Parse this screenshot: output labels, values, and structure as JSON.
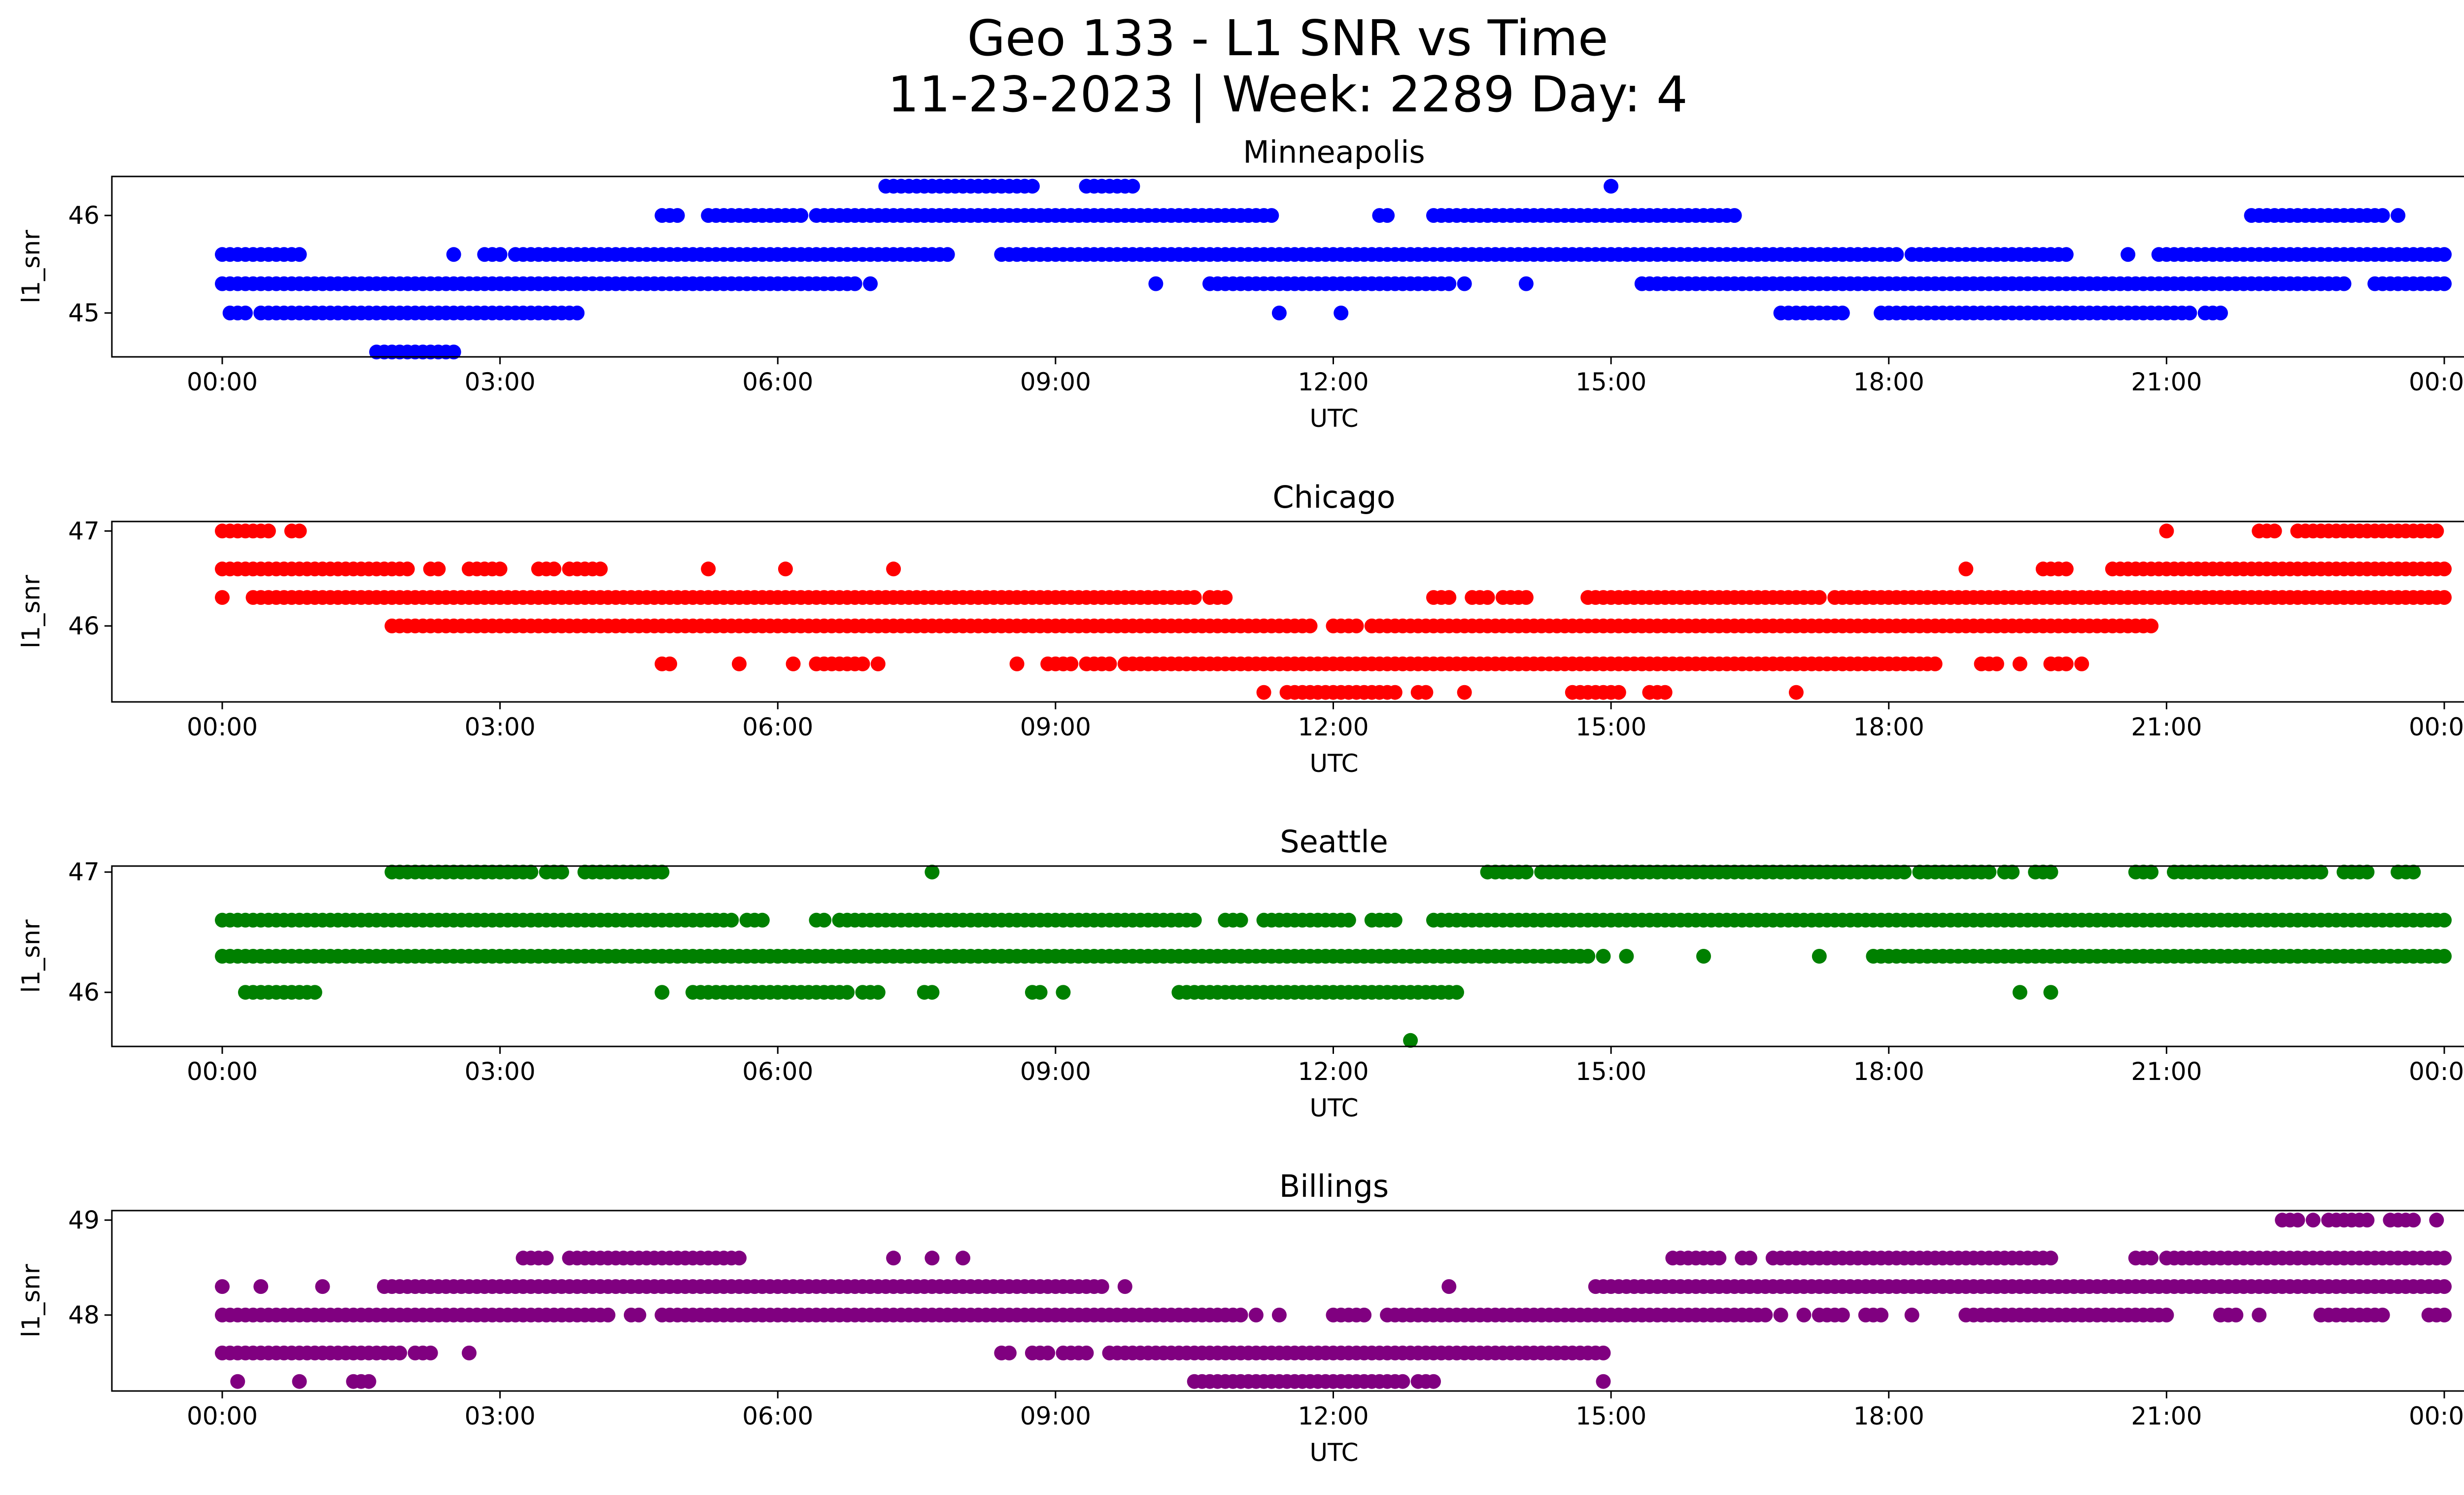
{
  "figure": {
    "title_line1": "Geo 133 - L1 SNR vs Time",
    "title_line2": "11-23-2023 | Week: 2289 Day: 4"
  },
  "chart_data": [
    {
      "type": "scatter",
      "title": "Minneapolis",
      "xlabel": "UTC",
      "ylabel": "l1_snr",
      "color": "#0000ff",
      "xlim": [
        "23:36",
        "00:26 (+1 day)"
      ],
      "ylim": [
        44.55,
        46.4
      ],
      "x_ticks": [
        "00:00",
        "03:00",
        "06:00",
        "09:00",
        "12:00",
        "15:00",
        "18:00",
        "21:00",
        "00:00"
      ],
      "y_ticks": [
        45,
        46
      ],
      "grid": false,
      "runs": [
        {
          "y": 46.3,
          "from": "07:10",
          "to": "08:45"
        },
        {
          "y": 46.3,
          "from": "09:20",
          "to": "09:50"
        },
        {
          "y": 46.3,
          "from": "15:00",
          "to": "15:00"
        },
        {
          "y": 46.0,
          "from": "04:45",
          "to": "04:55"
        },
        {
          "y": 46.0,
          "from": "05:15",
          "to": "06:15"
        },
        {
          "y": 46.0,
          "from": "06:25",
          "to": "11:20"
        },
        {
          "y": 46.0,
          "from": "12:30",
          "to": "12:35"
        },
        {
          "y": 46.0,
          "from": "13:05",
          "to": "16:20"
        },
        {
          "y": 46.0,
          "from": "21:55",
          "to": "23:20"
        },
        {
          "y": 46.0,
          "from": "23:30",
          "to": "23:30"
        },
        {
          "y": 45.6,
          "from": "00:00",
          "to": "00:50"
        },
        {
          "y": 45.6,
          "from": "02:30",
          "to": "02:30"
        },
        {
          "y": 45.6,
          "from": "02:50",
          "to": "03:00"
        },
        {
          "y": 45.6,
          "from": "03:10",
          "to": "07:50"
        },
        {
          "y": 45.6,
          "from": "08:25",
          "to": "18:05"
        },
        {
          "y": 45.6,
          "from": "18:15",
          "to": "19:55"
        },
        {
          "y": 45.6,
          "from": "20:35",
          "to": "20:35"
        },
        {
          "y": 45.6,
          "from": "20:55",
          "to": "24:00"
        },
        {
          "y": 45.3,
          "from": "00:00",
          "to": "05:55"
        },
        {
          "y": 45.3,
          "from": "06:00",
          "to": "06:50"
        },
        {
          "y": 45.3,
          "from": "07:00",
          "to": "07:00"
        },
        {
          "y": 45.3,
          "from": "10:05",
          "to": "10:05"
        },
        {
          "y": 45.3,
          "from": "10:40",
          "to": "13:15"
        },
        {
          "y": 45.3,
          "from": "13:25",
          "to": "13:25"
        },
        {
          "y": 45.3,
          "from": "14:05",
          "to": "14:05"
        },
        {
          "y": 45.3,
          "from": "15:20",
          "to": "22:55"
        },
        {
          "y": 45.3,
          "from": "23:15",
          "to": "24:00"
        },
        {
          "y": 45.0,
          "from": "00:05",
          "to": "00:15"
        },
        {
          "y": 45.0,
          "from": "00:25",
          "to": "03:45"
        },
        {
          "y": 45.0,
          "from": "03:50",
          "to": "03:50"
        },
        {
          "y": 45.0,
          "from": "11:25",
          "to": "11:25"
        },
        {
          "y": 45.0,
          "from": "12:05",
          "to": "12:05"
        },
        {
          "y": 45.0,
          "from": "16:50",
          "to": "17:30"
        },
        {
          "y": 45.0,
          "from": "17:55",
          "to": "21:15"
        },
        {
          "y": 45.0,
          "from": "21:25",
          "to": "21:35"
        },
        {
          "y": 44.6,
          "from": "01:40",
          "to": "02:30"
        }
      ]
    },
    {
      "type": "scatter",
      "title": "Chicago",
      "xlabel": "UTC",
      "ylabel": "l1_snr",
      "color": "#ff0000",
      "xlim": [
        "23:36",
        "00:26 (+1 day)"
      ],
      "ylim": [
        45.2,
        47.1
      ],
      "x_ticks": [
        "00:00",
        "03:00",
        "06:00",
        "09:00",
        "12:00",
        "15:00",
        "18:00",
        "21:00",
        "00:00"
      ],
      "y_ticks": [
        46,
        47
      ],
      "grid": false,
      "runs": [
        {
          "y": 47.0,
          "from": "00:00",
          "to": "00:30"
        },
        {
          "y": 47.0,
          "from": "00:45",
          "to": "00:50"
        },
        {
          "y": 47.0,
          "from": "21:00",
          "to": "21:00"
        },
        {
          "y": 47.0,
          "from": "22:00",
          "to": "22:10"
        },
        {
          "y": 47.0,
          "from": "22:25",
          "to": "23:55"
        },
        {
          "y": 46.6,
          "from": "00:00",
          "to": "02:00"
        },
        {
          "y": 46.6,
          "from": "02:15",
          "to": "02:20"
        },
        {
          "y": 46.6,
          "from": "02:40",
          "to": "02:55"
        },
        {
          "y": 46.6,
          "from": "03:00",
          "to": "03:00"
        },
        {
          "y": 46.6,
          "from": "03:25",
          "to": "03:35"
        },
        {
          "y": 46.6,
          "from": "03:45",
          "to": "04:05"
        },
        {
          "y": 46.6,
          "from": "05:15",
          "to": "05:15"
        },
        {
          "y": 46.6,
          "from": "06:05",
          "to": "06:05"
        },
        {
          "y": 46.6,
          "from": "07:15",
          "to": "07:15"
        },
        {
          "y": 46.6,
          "from": "18:50",
          "to": "18:50"
        },
        {
          "y": 46.6,
          "from": "19:40",
          "to": "19:55"
        },
        {
          "y": 46.6,
          "from": "20:25",
          "to": "24:00"
        },
        {
          "y": 46.3,
          "from": "00:00",
          "to": "00:00"
        },
        {
          "y": 46.3,
          "from": "00:20",
          "to": "10:30"
        },
        {
          "y": 46.3,
          "from": "10:40",
          "to": "10:50"
        },
        {
          "y": 46.3,
          "from": "13:05",
          "to": "13:15"
        },
        {
          "y": 46.3,
          "from": "13:30",
          "to": "13:40"
        },
        {
          "y": 46.3,
          "from": "13:50",
          "to": "14:05"
        },
        {
          "y": 46.3,
          "from": "14:45",
          "to": "17:15"
        },
        {
          "y": 46.3,
          "from": "17:25",
          "to": "24:00"
        },
        {
          "y": 46.0,
          "from": "01:50",
          "to": "11:45"
        },
        {
          "y": 46.0,
          "from": "12:00",
          "to": "12:15"
        },
        {
          "y": 46.0,
          "from": "12:25",
          "to": "20:50"
        },
        {
          "y": 45.6,
          "from": "04:45",
          "to": "04:50"
        },
        {
          "y": 45.6,
          "from": "05:35",
          "to": "05:35"
        },
        {
          "y": 45.6,
          "from": "06:10",
          "to": "06:10"
        },
        {
          "y": 45.6,
          "from": "06:25",
          "to": "06:55"
        },
        {
          "y": 45.6,
          "from": "07:05",
          "to": "07:05"
        },
        {
          "y": 45.6,
          "from": "08:35",
          "to": "08:35"
        },
        {
          "y": 45.6,
          "from": "08:55",
          "to": "09:10"
        },
        {
          "y": 45.6,
          "from": "09:20",
          "to": "09:35"
        },
        {
          "y": 45.6,
          "from": "09:45",
          "to": "18:30"
        },
        {
          "y": 45.6,
          "from": "19:00",
          "to": "19:10"
        },
        {
          "y": 45.6,
          "from": "19:25",
          "to": "19:25"
        },
        {
          "y": 45.6,
          "from": "19:45",
          "to": "19:55"
        },
        {
          "y": 45.6,
          "from": "20:05",
          "to": "20:05"
        },
        {
          "y": 45.3,
          "from": "11:15",
          "to": "11:15"
        },
        {
          "y": 45.3,
          "from": "11:30",
          "to": "12:40"
        },
        {
          "y": 45.3,
          "from": "12:55",
          "to": "13:00"
        },
        {
          "y": 45.3,
          "from": "13:25",
          "to": "13:25"
        },
        {
          "y": 45.3,
          "from": "14:35",
          "to": "15:05"
        },
        {
          "y": 45.3,
          "from": "15:25",
          "to": "15:35"
        },
        {
          "y": 45.3,
          "from": "17:00",
          "to": "17:00"
        }
      ]
    },
    {
      "type": "scatter",
      "title": "Seattle",
      "xlabel": "UTC",
      "ylabel": "l1_snr",
      "color": "#008000",
      "xlim": [
        "23:36",
        "00:26 (+1 day)"
      ],
      "ylim": [
        45.55,
        47.05
      ],
      "x_ticks": [
        "00:00",
        "03:00",
        "06:00",
        "09:00",
        "12:00",
        "15:00",
        "18:00",
        "21:00",
        "00:00"
      ],
      "y_ticks": [
        46,
        47
      ],
      "grid": false,
      "runs": [
        {
          "y": 47.0,
          "from": "01:50",
          "to": "03:20"
        },
        {
          "y": 47.0,
          "from": "03:30",
          "to": "03:40"
        },
        {
          "y": 47.0,
          "from": "03:55",
          "to": "04:45"
        },
        {
          "y": 47.0,
          "from": "07:40",
          "to": "07:40"
        },
        {
          "y": 47.0,
          "from": "13:40",
          "to": "14:05"
        },
        {
          "y": 47.0,
          "from": "14:15",
          "to": "18:10"
        },
        {
          "y": 47.0,
          "from": "18:20",
          "to": "19:05"
        },
        {
          "y": 47.0,
          "from": "19:15",
          "to": "19:20"
        },
        {
          "y": 47.0,
          "from": "19:35",
          "to": "19:45"
        },
        {
          "y": 47.0,
          "from": "20:40",
          "to": "20:50"
        },
        {
          "y": 47.0,
          "from": "21:05",
          "to": "22:40"
        },
        {
          "y": 47.0,
          "from": "22:55",
          "to": "23:10"
        },
        {
          "y": 47.0,
          "from": "23:30",
          "to": "23:40"
        },
        {
          "y": 46.6,
          "from": "00:00",
          "to": "05:30"
        },
        {
          "y": 46.6,
          "from": "05:40",
          "to": "05:50"
        },
        {
          "y": 46.6,
          "from": "06:25",
          "to": "06:30"
        },
        {
          "y": 46.6,
          "from": "06:40",
          "to": "10:30"
        },
        {
          "y": 46.6,
          "from": "10:50",
          "to": "11:00"
        },
        {
          "y": 46.6,
          "from": "11:15",
          "to": "12:10"
        },
        {
          "y": 46.6,
          "from": "12:25",
          "to": "12:40"
        },
        {
          "y": 46.6,
          "from": "13:05",
          "to": "24:00"
        },
        {
          "y": 46.3,
          "from": "00:00",
          "to": "14:45"
        },
        {
          "y": 46.3,
          "from": "14:55",
          "to": "14:55"
        },
        {
          "y": 46.3,
          "from": "15:10",
          "to": "15:10"
        },
        {
          "y": 46.3,
          "from": "16:00",
          "to": "16:00"
        },
        {
          "y": 46.3,
          "from": "17:15",
          "to": "17:15"
        },
        {
          "y": 46.3,
          "from": "17:50",
          "to": "24:00"
        },
        {
          "y": 46.0,
          "from": "00:15",
          "to": "01:00"
        },
        {
          "y": 46.0,
          "from": "04:45",
          "to": "04:45"
        },
        {
          "y": 46.0,
          "from": "05:05",
          "to": "06:45"
        },
        {
          "y": 46.0,
          "from": "06:55",
          "to": "07:05"
        },
        {
          "y": 46.0,
          "from": "07:35",
          "to": "07:40"
        },
        {
          "y": 46.0,
          "from": "08:45",
          "to": "08:50"
        },
        {
          "y": 46.0,
          "from": "09:05",
          "to": "09:05"
        },
        {
          "y": 46.0,
          "from": "10:20",
          "to": "13:20"
        },
        {
          "y": 46.0,
          "from": "19:25",
          "to": "19:25"
        },
        {
          "y": 46.0,
          "from": "19:45",
          "to": "19:45"
        },
        {
          "y": 45.6,
          "from": "12:50",
          "to": "12:50"
        }
      ]
    },
    {
      "type": "scatter",
      "title": "Billings",
      "xlabel": "UTC",
      "ylabel": "l1_snr",
      "color": "#800080",
      "xlim": [
        "23:36",
        "00:26 (+1 day)"
      ],
      "ylim": [
        47.2,
        49.1
      ],
      "x_ticks": [
        "00:00",
        "03:00",
        "06:00",
        "09:00",
        "12:00",
        "15:00",
        "18:00",
        "21:00",
        "00:00"
      ],
      "y_ticks": [
        48,
        49
      ],
      "grid": false,
      "runs": [
        {
          "y": 49.0,
          "from": "22:15",
          "to": "22:25"
        },
        {
          "y": 49.0,
          "from": "22:35",
          "to": "22:35"
        },
        {
          "y": 49.0,
          "from": "22:45",
          "to": "23:10"
        },
        {
          "y": 49.0,
          "from": "23:25",
          "to": "23:40"
        },
        {
          "y": 49.0,
          "from": "23:55",
          "to": "23:55"
        },
        {
          "y": 48.6,
          "from": "03:15",
          "to": "03:30"
        },
        {
          "y": 48.6,
          "from": "03:45",
          "to": "05:30"
        },
        {
          "y": 48.6,
          "from": "05:35",
          "to": "05:35"
        },
        {
          "y": 48.6,
          "from": "07:15",
          "to": "07:15"
        },
        {
          "y": 48.6,
          "from": "07:40",
          "to": "07:40"
        },
        {
          "y": 48.6,
          "from": "08:00",
          "to": "08:00"
        },
        {
          "y": 48.6,
          "from": "15:40",
          "to": "16:10"
        },
        {
          "y": 48.6,
          "from": "16:25",
          "to": "16:30"
        },
        {
          "y": 48.6,
          "from": "16:45",
          "to": "19:45"
        },
        {
          "y": 48.6,
          "from": "20:40",
          "to": "20:50"
        },
        {
          "y": 48.6,
          "from": "21:00",
          "to": "24:00"
        },
        {
          "y": 48.3,
          "from": "00:00",
          "to": "00:00"
        },
        {
          "y": 48.3,
          "from": "00:25",
          "to": "00:25"
        },
        {
          "y": 48.3,
          "from": "01:05",
          "to": "01:05"
        },
        {
          "y": 48.3,
          "from": "01:45",
          "to": "09:30"
        },
        {
          "y": 48.3,
          "from": "09:45",
          "to": "09:45"
        },
        {
          "y": 48.3,
          "from": "13:15",
          "to": "13:15"
        },
        {
          "y": 48.3,
          "from": "14:50",
          "to": "24:00"
        },
        {
          "y": 48.0,
          "from": "00:00",
          "to": "03:30"
        },
        {
          "y": 48.0,
          "from": "03:35",
          "to": "04:10"
        },
        {
          "y": 48.0,
          "from": "04:25",
          "to": "04:30"
        },
        {
          "y": 48.0,
          "from": "04:45",
          "to": "05:00"
        },
        {
          "y": 48.0,
          "from": "05:05",
          "to": "10:40"
        },
        {
          "y": 48.0,
          "from": "10:45",
          "to": "11:00"
        },
        {
          "y": 48.0,
          "from": "11:10",
          "to": "11:10"
        },
        {
          "y": 48.0,
          "from": "11:25",
          "to": "11:25"
        },
        {
          "y": 48.0,
          "from": "12:00",
          "to": "12:20"
        },
        {
          "y": 48.0,
          "from": "12:35",
          "to": "16:40"
        },
        {
          "y": 48.0,
          "from": "16:50",
          "to": "16:50"
        },
        {
          "y": 48.0,
          "from": "17:05",
          "to": "17:05"
        },
        {
          "y": 48.0,
          "from": "17:15",
          "to": "17:30"
        },
        {
          "y": 48.0,
          "from": "17:45",
          "to": "17:55"
        },
        {
          "y": 48.0,
          "from": "18:15",
          "to": "18:15"
        },
        {
          "y": 48.0,
          "from": "18:50",
          "to": "19:15"
        },
        {
          "y": 48.0,
          "from": "19:20",
          "to": "21:00"
        },
        {
          "y": 48.0,
          "from": "21:35",
          "to": "21:45"
        },
        {
          "y": 48.0,
          "from": "22:00",
          "to": "22:00"
        },
        {
          "y": 48.0,
          "from": "22:40",
          "to": "23:20"
        },
        {
          "y": 48.0,
          "from": "23:50",
          "to": "24:00"
        },
        {
          "y": 47.6,
          "from": "00:00",
          "to": "01:55"
        },
        {
          "y": 47.6,
          "from": "02:05",
          "to": "02:15"
        },
        {
          "y": 47.6,
          "from": "02:40",
          "to": "02:40"
        },
        {
          "y": 47.6,
          "from": "08:25",
          "to": "08:30"
        },
        {
          "y": 47.6,
          "from": "08:45",
          "to": "08:55"
        },
        {
          "y": 47.6,
          "from": "09:05",
          "to": "09:20"
        },
        {
          "y": 47.6,
          "from": "09:35",
          "to": "14:55"
        },
        {
          "y": 47.3,
          "from": "00:10",
          "to": "00:10"
        },
        {
          "y": 47.3,
          "from": "00:50",
          "to": "00:50"
        },
        {
          "y": 47.3,
          "from": "01:25",
          "to": "01:35"
        },
        {
          "y": 47.3,
          "from": "10:30",
          "to": "10:45"
        },
        {
          "y": 47.3,
          "from": "10:50",
          "to": "12:45"
        },
        {
          "y": 47.3,
          "from": "12:55",
          "to": "13:05"
        },
        {
          "y": 47.3,
          "from": "14:55",
          "to": "14:55"
        }
      ]
    }
  ]
}
